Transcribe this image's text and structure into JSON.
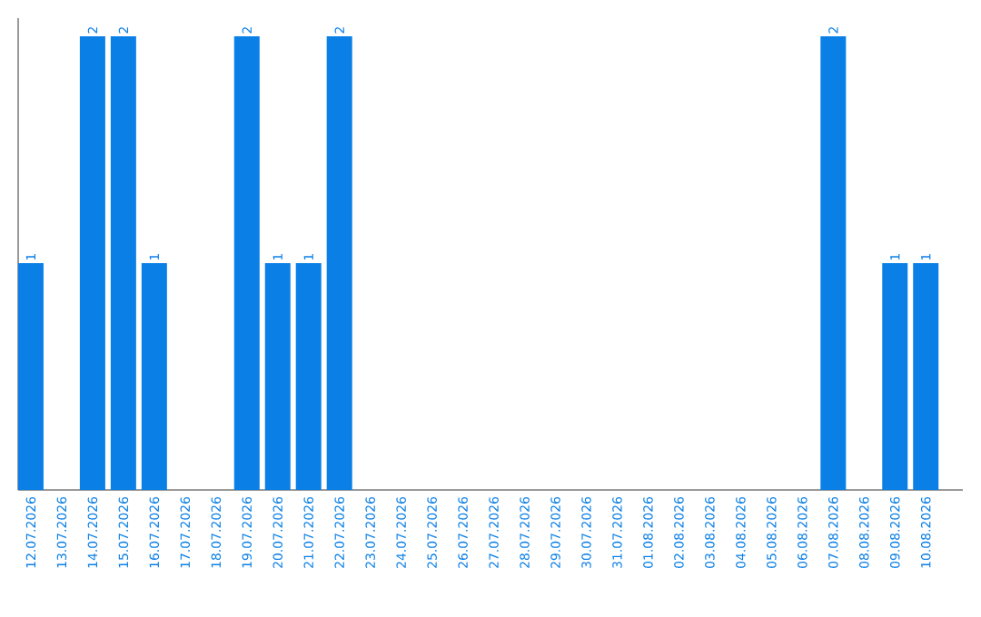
{
  "chart_data": {
    "type": "bar",
    "categories": [
      "12.07.2026",
      "13.07.2026",
      "14.07.2026",
      "15.07.2026",
      "16.07.2026",
      "17.07.2026",
      "18.07.2026",
      "19.07.2026",
      "20.07.2026",
      "21.07.2026",
      "22.07.2026",
      "23.07.2026",
      "24.07.2026",
      "25.07.2026",
      "26.07.2026",
      "27.07.2026",
      "28.07.2026",
      "29.07.2026",
      "30.07.2026",
      "31.07.2026",
      "01.08.2026",
      "02.08.2026",
      "03.08.2026",
      "04.08.2026",
      "05.08.2026",
      "06.08.2026",
      "07.08.2026",
      "08.08.2026",
      "09.08.2026",
      "10.08.2026"
    ],
    "values": [
      1,
      0,
      2,
      2,
      1,
      0,
      0,
      2,
      1,
      1,
      2,
      0,
      0,
      0,
      0,
      0,
      0,
      0,
      0,
      0,
      0,
      0,
      0,
      0,
      0,
      0,
      2,
      0,
      1,
      1
    ],
    "value_labels": [
      "1",
      null,
      "2",
      "2",
      "1",
      null,
      null,
      "2",
      "1",
      "1",
      "2",
      null,
      null,
      null,
      null,
      null,
      null,
      null,
      null,
      null,
      null,
      null,
      null,
      null,
      null,
      null,
      "2",
      null,
      "1",
      "1"
    ],
    "color": "#0a7fe6"
  }
}
